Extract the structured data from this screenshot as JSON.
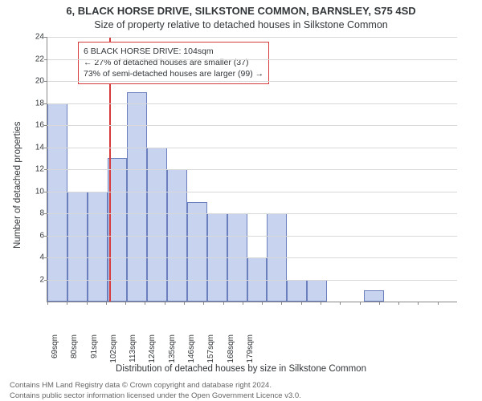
{
  "title_line1": "6, BLACK HORSE DRIVE, SILKSTONE COMMON, BARNSLEY, S75 4SD",
  "title_line2": "Size of property relative to detached houses in Silkstone Common",
  "ylabel": "Number of detached properties",
  "xlabel": "Distribution of detached houses by size in Silkstone Common",
  "attribution_line1": "Contains HM Land Registry data © Crown copyright and database right 2024.",
  "attribution_line2": "Contains public sector information licensed under the Open Government Licence v3.0.",
  "chart": {
    "type": "histogram",
    "bar_fill": "#c7d3ef",
    "bar_stroke": "#6b7fbf",
    "grid_color": "#d8d8d8",
    "background": "#ffffff",
    "marker_color": "#d73a3a",
    "marker_x_sqm": 104,
    "x_start": 69,
    "x_step": 11,
    "x_count": 21,
    "x_unit": "sqm",
    "ylim": [
      0,
      24
    ],
    "ytick_step": 2,
    "values": [
      18,
      10,
      10,
      13,
      19,
      14,
      12,
      9,
      8,
      8,
      4,
      8,
      2,
      2,
      0,
      0,
      1,
      0,
      0,
      0,
      0
    ],
    "annotation": {
      "l1": "6 BLACK HORSE DRIVE: 104sqm",
      "l2": "← 27% of detached houses are smaller (37)",
      "l3": "73% of semi-detached houses are larger (99) →"
    }
  }
}
